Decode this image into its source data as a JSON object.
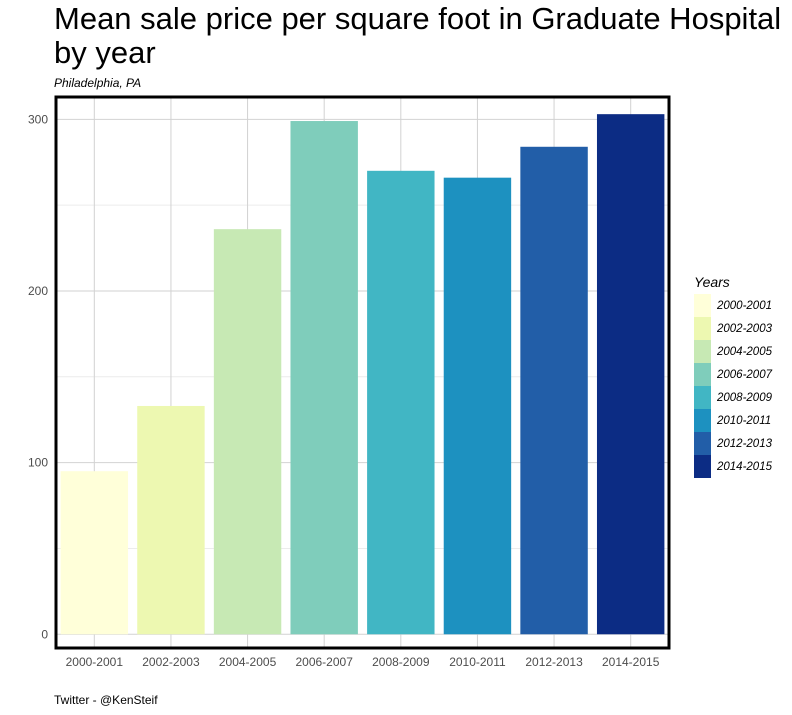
{
  "chart_data": {
    "type": "bar",
    "title": "Mean sale price per square foot in Graduate Hospital by year",
    "subtitle": "Philadelphia, PA",
    "caption": "Twitter - @KenSteif",
    "xlabel": "",
    "ylabel": "",
    "categories": [
      "2000-2001",
      "2002-2003",
      "2004-2005",
      "2006-2007",
      "2008-2009",
      "2010-2011",
      "2012-2013",
      "2014-2015"
    ],
    "values": [
      95,
      133,
      236,
      299,
      270,
      266,
      284,
      303
    ],
    "colors": [
      "#ffffd9",
      "#edf8b1",
      "#c7e9b4",
      "#7fcdbb",
      "#41b6c4",
      "#1d91c0",
      "#225ea8",
      "#0c2c84"
    ],
    "ylim": [
      -8,
      313
    ],
    "yticks": [
      0,
      100,
      200,
      300
    ],
    "ytick_labels": [
      "0",
      "100",
      "200",
      "300"
    ],
    "grid": true,
    "legend": {
      "title": "Years",
      "position": "right"
    }
  }
}
